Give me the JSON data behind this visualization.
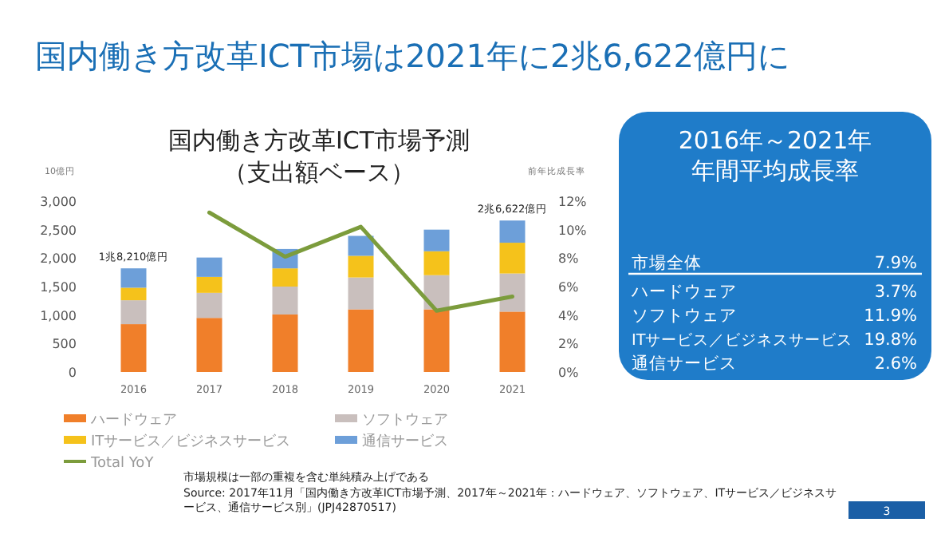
{
  "chart_data": [
    {
      "type": "bar",
      "stacked": true,
      "title": "国内働き方改革ICT市場予測（支出額ベース）",
      "ylabel": "10億円",
      "y2label": "前年比成長率",
      "categories": [
        "2016",
        "2017",
        "2018",
        "2019",
        "2020",
        "2021"
      ],
      "series": [
        {
          "name": "ハードウェア",
          "color": "#f07f2a",
          "values": [
            840,
            950,
            1010,
            1100,
            1100,
            1060
          ]
        },
        {
          "name": "ソフトウェア",
          "color": "#c9bfbd",
          "values": [
            420,
            440,
            490,
            560,
            600,
            670
          ]
        },
        {
          "name": "ITサービス／ビジネスサービス",
          "color": "#f5c21b",
          "values": [
            220,
            280,
            320,
            380,
            420,
            540
          ]
        },
        {
          "name": "通信サービス",
          "color": "#6d9fd9",
          "values": [
            340,
            340,
            340,
            350,
            380,
            390
          ]
        },
        {
          "name": "Total YoY",
          "type": "line",
          "axis": "y2",
          "color": "#7c9c3c",
          "values": [
            null,
            11.2,
            8.1,
            10.2,
            4.3,
            5.3
          ]
        }
      ],
      "ylim": [
        0,
        3000
      ],
      "yticks": [
        {
          "value": 0,
          "label": "0"
        },
        {
          "value": 500,
          "label": "500"
        },
        {
          "value": 1000,
          "label": "1,000"
        },
        {
          "value": 1500,
          "label": "1,500"
        },
        {
          "value": 2000,
          "label": "2,000"
        },
        {
          "value": 2500,
          "label": "2,500"
        },
        {
          "value": 3000,
          "label": "3,000"
        }
      ],
      "y2lim": [
        0,
        12
      ],
      "y2ticks": [
        {
          "value": 0,
          "label": "0%"
        },
        {
          "value": 2,
          "label": "2%"
        },
        {
          "value": 4,
          "label": "4%"
        },
        {
          "value": 6,
          "label": "6%"
        },
        {
          "value": 8,
          "label": "8%"
        },
        {
          "value": 10,
          "label": "10%"
        },
        {
          "value": 12,
          "label": "12%"
        }
      ],
      "legend": "bottom",
      "annotations": [
        "国内働き方改革ICT市場は2021年に2兆6,622億円に",
        {
          "text": "1兆8,210億円",
          "x": "2016",
          "y": 1820
        },
        {
          "text": "2兆6,622億円",
          "x": "2021",
          "y": 2660
        },
        "市場規模は一部の重複を含む単純積み上げである",
        "Source: 2017年11月「国内働き方改革ICT市場予測、2017年～2021年：ハードウェア、ソフトウェア、ITサービス／ビジネスサービス、通信サービス別」(JPJ42870517)",
        "3"
      ]
    },
    {
      "type": "other",
      "title": "2016年～2021年年間平均成長率",
      "annotations": [
        "市場全体",
        "7.9%",
        "ハードウェア",
        "3.7%",
        "ソフトウェア",
        "11.9%",
        "ITサービス／ビジネスサービス",
        "19.8%",
        "通信サービス",
        "2.6%"
      ],
      "color": "#1f7cc9"
    }
  ]
}
